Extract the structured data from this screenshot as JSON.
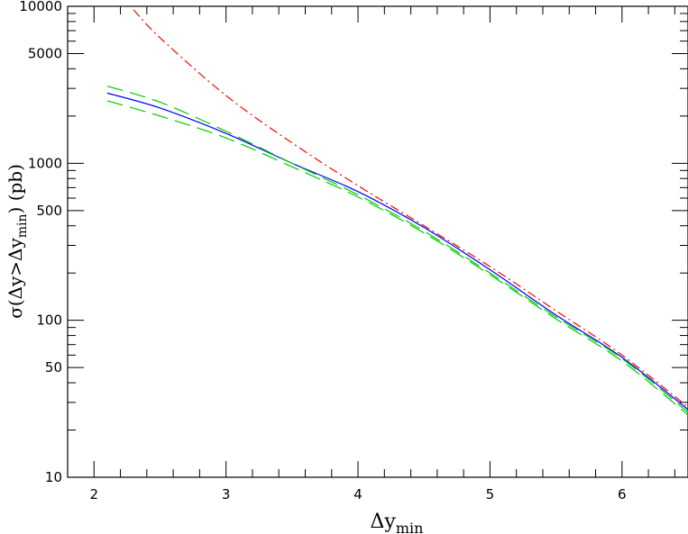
{
  "chart_data": {
    "type": "line",
    "title": "",
    "xlabel": {
      "main": "Δy",
      "sub": "min"
    },
    "ylabel": {
      "pre": "σ(Δy>Δy",
      "sub": "min",
      "post": ")  (pb)"
    },
    "xlim": [
      1.8,
      6.5
    ],
    "ylim": [
      10,
      10000
    ],
    "yscale": "log",
    "grid": false,
    "legend": "none",
    "x_ticks": [
      2,
      3,
      4,
      5,
      6
    ],
    "x_tick_labels": [
      "2",
      "3",
      "4",
      "5",
      "6"
    ],
    "y_ticks": [
      10,
      50,
      100,
      500,
      1000,
      5000,
      10000
    ],
    "y_tick_labels": [
      "10",
      "50",
      "100",
      "500",
      "1000",
      "5000",
      "10000"
    ],
    "series": [
      {
        "color": "#ff0000",
        "dash": "dashdot",
        "x": [
          2.3,
          2.5,
          3.0,
          3.5,
          4.0,
          4.5,
          5.0,
          5.5,
          6.0,
          6.5
        ],
        "y": [
          9500,
          6300,
          2700,
          1350,
          720,
          400,
          220,
          115,
          60,
          28
        ]
      },
      {
        "color": "#0000ff",
        "dash": "solid",
        "x": [
          2.1,
          2.5,
          3.0,
          3.5,
          4.0,
          4.5,
          5.0,
          5.5,
          6.0,
          6.5
        ],
        "y": [
          2800,
          2250,
          1550,
          1000,
          660,
          390,
          210,
          108,
          58,
          27
        ]
      },
      {
        "color": "#00cc00",
        "dash": "longdash",
        "x": [
          2.1,
          2.5,
          3.0,
          3.5,
          4.0,
          4.5,
          5.0,
          5.5,
          6.0,
          6.5
        ],
        "y": [
          3100,
          2450,
          1600,
          1000,
          630,
          370,
          200,
          105,
          57,
          26
        ]
      },
      {
        "color": "#00cc00",
        "dash": "longdash",
        "x": [
          2.1,
          2.5,
          3.0,
          3.5,
          4.0,
          4.5,
          5.0,
          5.5,
          6.0,
          6.5
        ],
        "y": [
          2500,
          2000,
          1450,
          950,
          610,
          360,
          195,
          102,
          55,
          25
        ]
      }
    ]
  }
}
